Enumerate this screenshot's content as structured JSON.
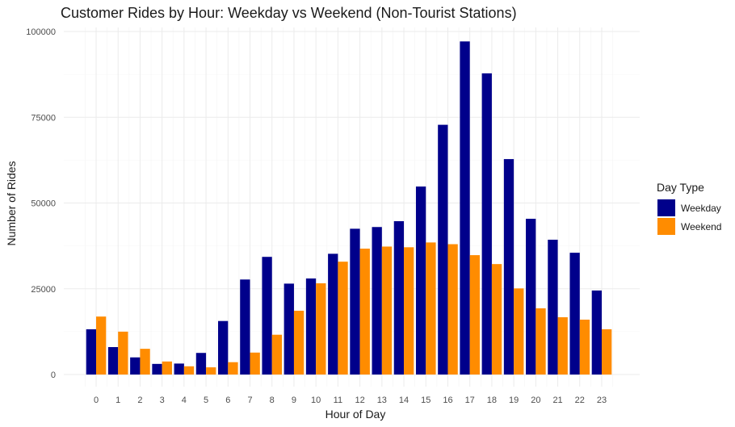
{
  "chart_data": {
    "type": "bar",
    "title": "Customer Rides by Hour: Weekday vs Weekend (Non-Tourist Stations)",
    "xlabel": "Hour of Day",
    "ylabel": "Number of Rides",
    "categories": [
      "0",
      "1",
      "2",
      "3",
      "4",
      "5",
      "6",
      "7",
      "8",
      "9",
      "10",
      "11",
      "12",
      "13",
      "14",
      "15",
      "16",
      "17",
      "18",
      "19",
      "20",
      "21",
      "22",
      "23"
    ],
    "series": [
      {
        "name": "Weekday",
        "color": "#00008B",
        "values": [
          13200,
          8000,
          5000,
          3100,
          3200,
          6300,
          15600,
          27700,
          34300,
          26500,
          28000,
          35200,
          42500,
          43000,
          44700,
          54800,
          72800,
          97100,
          87800,
          62800,
          45400,
          39300,
          35500,
          24500
        ]
      },
      {
        "name": "Weekend",
        "color": "#FF8C00",
        "values": [
          16900,
          12500,
          7500,
          3800,
          2400,
          2100,
          3600,
          6400,
          11600,
          18600,
          26600,
          32900,
          36700,
          37300,
          37100,
          38500,
          38000,
          34800,
          32200,
          25100,
          19300,
          16700,
          16000,
          13200
        ]
      }
    ],
    "ylim": [
      0,
      102000
    ],
    "yticks": [
      0,
      25000,
      50000,
      75000,
      100000
    ],
    "ytick_labels": [
      "0",
      "25000",
      "50000",
      "75000",
      "100000"
    ],
    "grid": true,
    "legend": {
      "title": "Day Type",
      "position": "right"
    }
  }
}
